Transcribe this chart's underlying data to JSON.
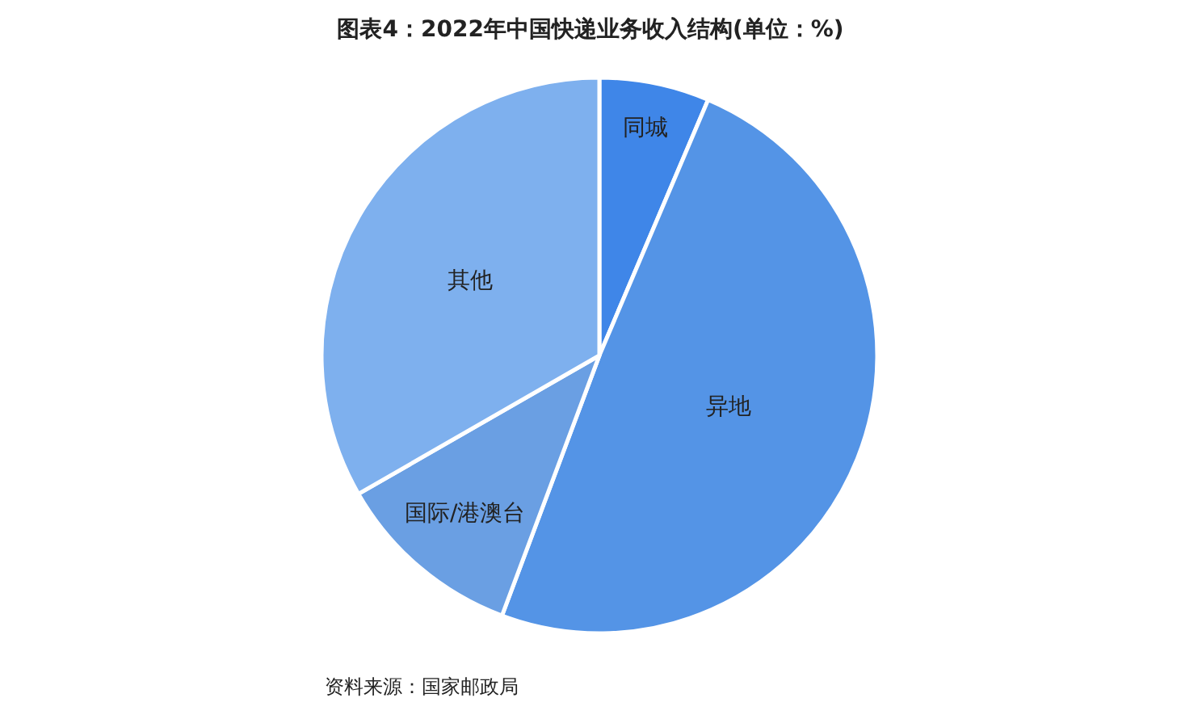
{
  "chart_data": {
    "type": "pie",
    "title": "图表4：2022年中国快递业务收入结构(单位：%)",
    "categories": [
      "同城",
      "异地",
      "国际/港澳台",
      "其他"
    ],
    "values": [
      6.4,
      49.3,
      11.0,
      33.3
    ],
    "colors": [
      "#3f86e8",
      "#5494e6",
      "#6a9fe3",
      "#7eb0ee"
    ],
    "legend": false,
    "annotations": [
      "资料来源：国家邮政局"
    ]
  }
}
